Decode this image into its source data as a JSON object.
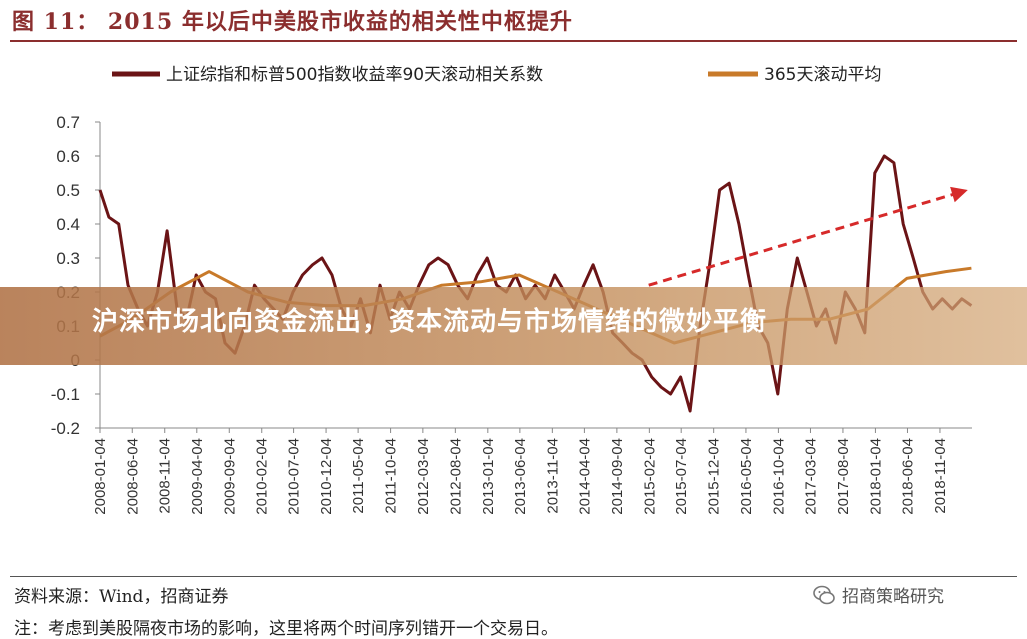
{
  "figure": {
    "title": "图 11：  2015 年以后中美股市收益的相关性中枢提升"
  },
  "banner": {
    "headline": "沪深市场北向资金流出，资本流动与市场情绪的微妙平衡"
  },
  "footer": {
    "source": "资料来源：Wind，招商证券",
    "note": "注：考虑到美股隔夜市场的影响，这里将两个时间序列错开一个交易日。",
    "watermark": "招商策略研究"
  },
  "colors": {
    "series_corr": "#6b1416",
    "series_avg": "#c87a2a",
    "trend_arrow": "#d62a2a",
    "title": "#8b2e2e",
    "banner": "#b07246"
  },
  "chart_data": {
    "type": "line",
    "title": "",
    "xlabel": "",
    "ylabel": "",
    "ylim": [
      -0.2,
      0.7
    ],
    "yticks": [
      0.7,
      0.6,
      0.5,
      0.4,
      0.3,
      0.2,
      0.1,
      0,
      -0.1,
      -0.2
    ],
    "ytick_labels": [
      "0.7",
      "0.6",
      "0.5",
      "0.4",
      "0.3",
      "0.2",
      "0.1",
      "0",
      "-0.1",
      "-0.2"
    ],
    "xlim": [
      "2008-01-04",
      "2019-04-04"
    ],
    "xticks": [
      "2008-01-04",
      "2008-06-04",
      "2008-11-04",
      "2009-04-04",
      "2009-09-04",
      "2010-02-04",
      "2010-07-04",
      "2010-12-04",
      "2011-05-04",
      "2011-10-04",
      "2012-03-04",
      "2012-08-04",
      "2013-01-04",
      "2013-06-04",
      "2013-11-04",
      "2014-04-04",
      "2014-09-04",
      "2015-02-04",
      "2015-07-04",
      "2015-12-04",
      "2016-05-04",
      "2016-10-04",
      "2017-03-04",
      "2017-08-04",
      "2018-01-04",
      "2018-06-04",
      "2018-11-04"
    ],
    "legend": {
      "position": "top"
    },
    "grid": false,
    "series": [
      {
        "name": "上证综指和标普500指数收益率90天滚动相关系数",
        "color": "#6b1416",
        "x": [
          "2008-01-04",
          "2008-02-15",
          "2008-04-01",
          "2008-05-15",
          "2008-07-01",
          "2008-08-15",
          "2008-10-01",
          "2008-11-15",
          "2009-01-01",
          "2009-02-15",
          "2009-04-01",
          "2009-05-15",
          "2009-07-01",
          "2009-08-15",
          "2009-10-01",
          "2009-11-15",
          "2010-01-01",
          "2010-02-15",
          "2010-04-01",
          "2010-05-15",
          "2010-07-01",
          "2010-08-15",
          "2010-10-01",
          "2010-11-15",
          "2011-01-01",
          "2011-02-15",
          "2011-04-01",
          "2011-05-15",
          "2011-07-01",
          "2011-08-15",
          "2011-10-01",
          "2011-11-15",
          "2012-01-01",
          "2012-02-15",
          "2012-04-01",
          "2012-05-15",
          "2012-07-01",
          "2012-08-15",
          "2012-10-01",
          "2012-11-15",
          "2013-01-01",
          "2013-02-15",
          "2013-04-01",
          "2013-05-15",
          "2013-07-01",
          "2013-08-15",
          "2013-10-01",
          "2013-11-15",
          "2014-01-01",
          "2014-02-15",
          "2014-04-01",
          "2014-05-15",
          "2014-07-01",
          "2014-08-15",
          "2014-10-01",
          "2014-11-15",
          "2015-01-01",
          "2015-02-15",
          "2015-04-01",
          "2015-05-15",
          "2015-07-01",
          "2015-08-15",
          "2015-10-01",
          "2015-11-15",
          "2016-01-01",
          "2016-02-15",
          "2016-04-01",
          "2016-05-15",
          "2016-07-01",
          "2016-08-15",
          "2016-10-01",
          "2016-11-15",
          "2017-01-01",
          "2017-02-15",
          "2017-04-01",
          "2017-05-15",
          "2017-07-01",
          "2017-08-15",
          "2017-10-01",
          "2017-11-15",
          "2018-01-01",
          "2018-02-15",
          "2018-04-01",
          "2018-05-15",
          "2018-07-01",
          "2018-08-15",
          "2018-10-01",
          "2018-11-15",
          "2019-01-01",
          "2019-02-15",
          "2019-04-01"
        ],
        "y": [
          0.5,
          0.42,
          0.4,
          0.22,
          0.15,
          0.1,
          0.2,
          0.38,
          0.15,
          0.12,
          0.25,
          0.2,
          0.18,
          0.05,
          0.02,
          0.1,
          0.22,
          0.18,
          0.15,
          0.12,
          0.2,
          0.25,
          0.28,
          0.3,
          0.25,
          0.15,
          0.1,
          0.18,
          0.08,
          0.22,
          0.12,
          0.2,
          0.15,
          0.22,
          0.28,
          0.3,
          0.28,
          0.22,
          0.18,
          0.25,
          0.3,
          0.22,
          0.2,
          0.25,
          0.18,
          0.22,
          0.18,
          0.25,
          0.2,
          0.15,
          0.22,
          0.28,
          0.2,
          0.08,
          0.05,
          0.02,
          0.0,
          -0.05,
          -0.08,
          -0.1,
          -0.05,
          -0.15,
          0.1,
          0.28,
          0.5,
          0.52,
          0.4,
          0.25,
          0.1,
          0.05,
          -0.1,
          0.15,
          0.3,
          0.2,
          0.1,
          0.15,
          0.05,
          0.2,
          0.15,
          0.08,
          0.55,
          0.6,
          0.58,
          0.4,
          0.3,
          0.2,
          0.15,
          0.18,
          0.15,
          0.18,
          0.16
        ]
      },
      {
        "name": "365天滚动平均",
        "color": "#c87a2a",
        "x": [
          "2008-01-04",
          "2008-06-01",
          "2008-12-01",
          "2009-06-01",
          "2009-12-01",
          "2010-06-01",
          "2010-12-01",
          "2011-06-01",
          "2011-12-01",
          "2012-06-01",
          "2012-12-01",
          "2013-06-01",
          "2013-12-01",
          "2014-06-01",
          "2014-12-01",
          "2015-06-01",
          "2015-12-01",
          "2016-06-01",
          "2016-12-01",
          "2017-06-01",
          "2017-12-01",
          "2018-06-01",
          "2018-12-01",
          "2019-04-01"
        ],
        "y": [
          0.07,
          0.12,
          0.2,
          0.26,
          0.2,
          0.17,
          0.16,
          0.16,
          0.18,
          0.22,
          0.23,
          0.25,
          0.2,
          0.15,
          0.1,
          0.05,
          0.08,
          0.11,
          0.12,
          0.12,
          0.15,
          0.24,
          0.26,
          0.27
        ]
      }
    ]
  }
}
